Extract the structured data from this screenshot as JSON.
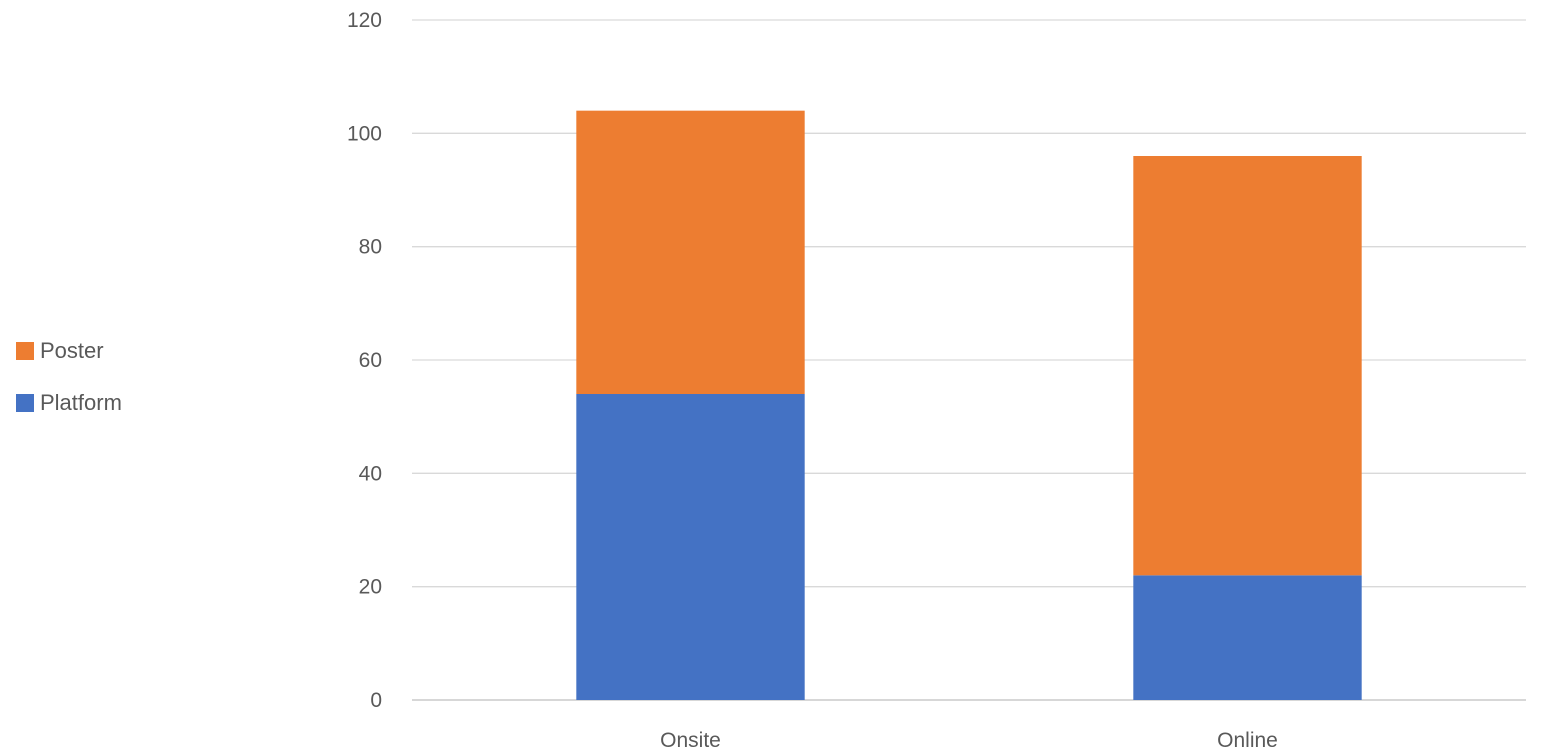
{
  "chart_data": {
    "type": "bar",
    "stacked": true,
    "categories": [
      "Onsite",
      "Online"
    ],
    "series": [
      {
        "name": "Platform",
        "values": [
          54,
          22
        ],
        "color": "#4472C4"
      },
      {
        "name": "Poster",
        "values": [
          50,
          74
        ],
        "color": "#ED7D31"
      }
    ],
    "title": "",
    "xlabel": "",
    "ylabel": "",
    "ylim": [
      0,
      120
    ],
    "yticks": [
      "0",
      "20",
      "40",
      "60",
      "80",
      "100",
      "120"
    ],
    "grid": true,
    "legend_position": "left"
  },
  "legend": {
    "items": [
      {
        "label": "Poster",
        "color": "#ED7D31"
      },
      {
        "label": "Platform",
        "color": "#4472C4"
      }
    ]
  }
}
